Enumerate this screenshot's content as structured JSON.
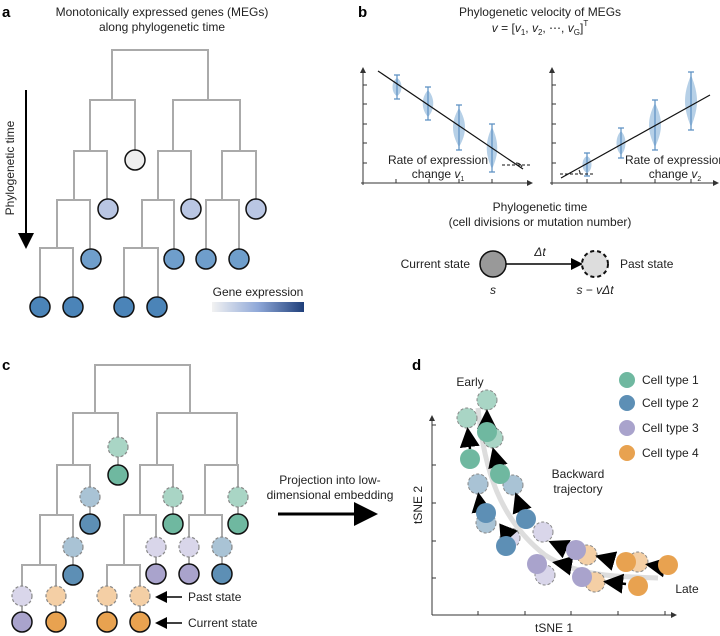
{
  "panel_a": {
    "label": "a",
    "title_line1": "Monotonically expressed genes (MEGs)",
    "title_line2": "along phylogenetic time",
    "axis_label": "Phylogenetic time",
    "legend_label": "Gene expression",
    "gradient_colors": [
      "#f2f2f2",
      "#1f3f7a"
    ]
  },
  "panel_b": {
    "label": "b",
    "title": "Phylogenetic velocity of MEGs",
    "formula": {
      "v": "v",
      "eq": " = [",
      "v1": "v",
      "s1": "1",
      "sep1": ", ",
      "v2": "v",
      "s2": "2",
      "sep2": ", ⋯, ",
      "vG": "v",
      "sG": "G",
      "close": "]",
      "sup": "T"
    },
    "left_plot": {
      "text1": "Rate of expression",
      "text2": "change ",
      "var": "v",
      "sub": "1"
    },
    "right_plot": {
      "text1": "Rate of expression",
      "text2": "change ",
      "var": "v",
      "sub": "2"
    },
    "xlabel_line1": "Phylogenetic time",
    "xlabel_line2": "(cell divisions or mutation number)",
    "current_state": "Current state",
    "past_state": "Past state",
    "delta_t": "Δt",
    "s": "s",
    "s_past": "s − vΔt",
    "violin_color": "#7aa9d4"
  },
  "panel_c": {
    "label": "c",
    "past_state": "Past state",
    "current_state": "Current state",
    "projection_line1": "Projection into low-",
    "projection_line2": "dimensional embedding"
  },
  "panel_d": {
    "label": "d",
    "xlabel": "tSNE 1",
    "ylabel": "tSNE 2",
    "early": "Early",
    "late": "Late",
    "trajectory_line1": "Backward",
    "trajectory_line2": "trajectory",
    "legend": [
      {
        "name": "Cell type 1",
        "color": "#6fb8a0"
      },
      {
        "name": "Cell type 2",
        "color": "#5d8fb5"
      },
      {
        "name": "Cell type 3",
        "color": "#a9a3cc"
      },
      {
        "name": "Cell type 4",
        "color": "#e8a250"
      }
    ]
  }
}
